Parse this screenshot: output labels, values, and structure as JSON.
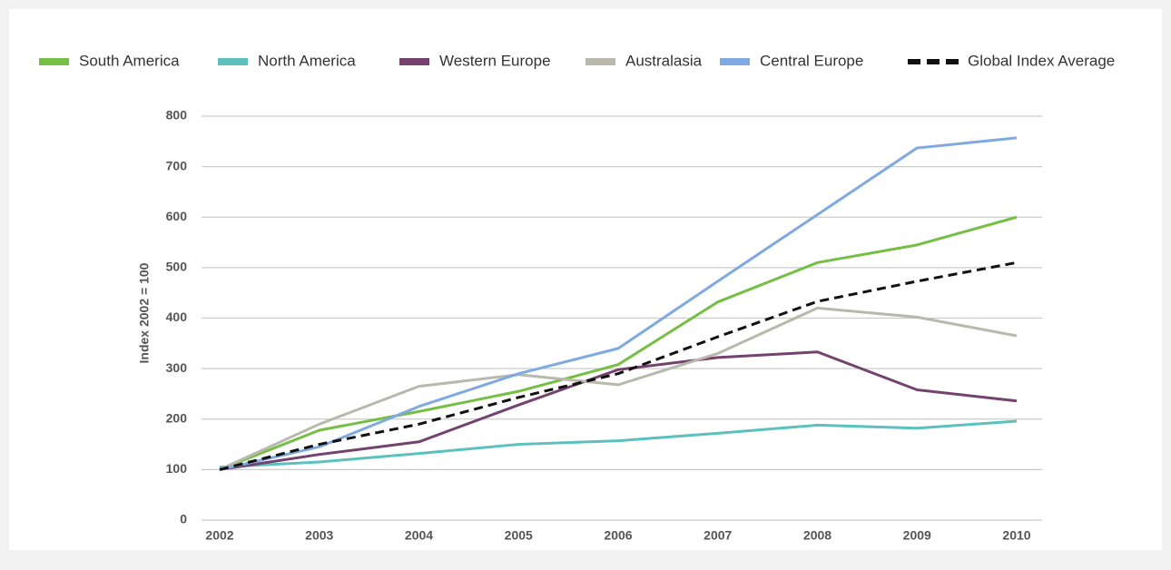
{
  "chart_data": {
    "type": "line",
    "categories": [
      "2002",
      "2003",
      "2004",
      "2005",
      "2006",
      "2007",
      "2008",
      "2009",
      "2010"
    ],
    "y_label": "Index 2002 = 100",
    "ylim": [
      0,
      800
    ],
    "yticks": [
      0,
      100,
      200,
      300,
      400,
      500,
      600,
      700,
      800
    ],
    "grid": true,
    "legend": "top",
    "series": [
      {
        "name": "South America",
        "color": "#74bf44",
        "values": [
          100,
          178,
          215,
          255,
          308,
          432,
          510,
          545,
          600
        ]
      },
      {
        "name": "North America",
        "color": "#5bc0be",
        "values": [
          105,
          115,
          132,
          150,
          157,
          172,
          188,
          182,
          196
        ]
      },
      {
        "name": "Western Europe",
        "color": "#74426e",
        "values": [
          100,
          130,
          155,
          228,
          298,
          322,
          333,
          258,
          236
        ]
      },
      {
        "name": "Australasia",
        "color": "#b8b8ad",
        "values": [
          100,
          190,
          265,
          288,
          268,
          330,
          420,
          402,
          365
        ]
      },
      {
        "name": "Central Europe",
        "color": "#7ea9e1",
        "values": [
          100,
          145,
          225,
          290,
          340,
          473,
          605,
          737,
          757
        ]
      },
      {
        "name": "Global Index Average",
        "color": "#111111",
        "dashed": true,
        "values": [
          100,
          150,
          190,
          243,
          290,
          363,
          433,
          473,
          510
        ]
      }
    ]
  }
}
